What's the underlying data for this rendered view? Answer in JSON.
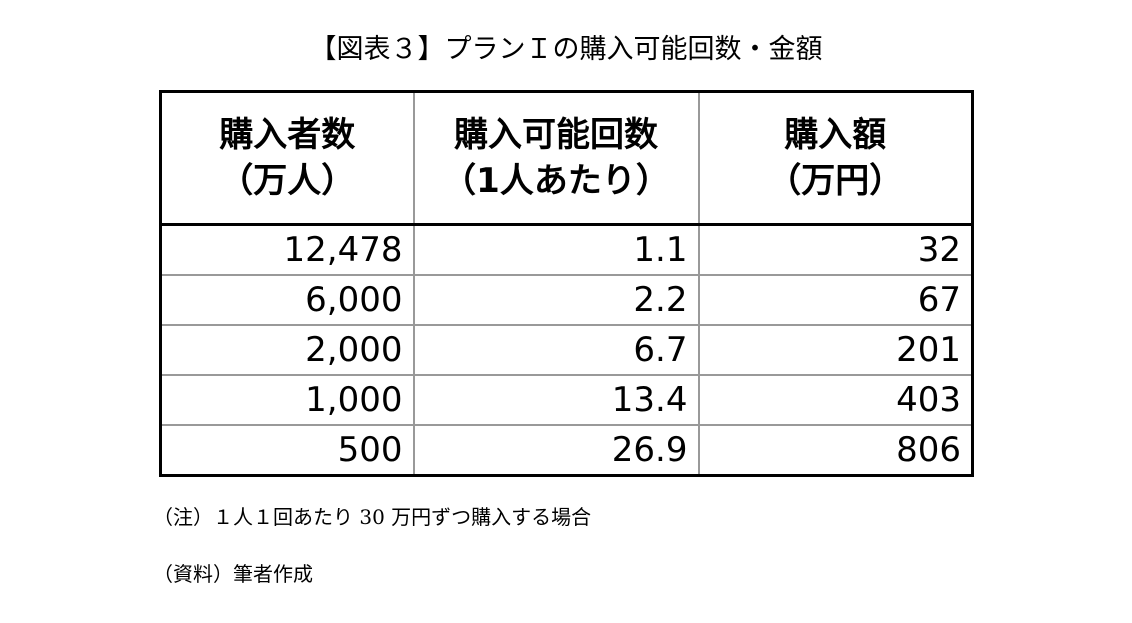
{
  "title": "【図表３】プランＩの購入可能回数・金額",
  "table": {
    "headers": [
      {
        "line1": "購入者数",
        "line2": "（万人）"
      },
      {
        "line1": "購入可能回数",
        "line2": "（1人あたり）"
      },
      {
        "line1": "購入額",
        "line2": "（万円）"
      }
    ],
    "rows": [
      [
        "12,478",
        "1.1",
        "32"
      ],
      [
        "6,000",
        "2.2",
        "67"
      ],
      [
        "2,000",
        "6.7",
        "201"
      ],
      [
        "1,000",
        "13.4",
        "403"
      ],
      [
        "500",
        "26.9",
        "806"
      ]
    ]
  },
  "notes": {
    "note": "（注）１人１回あたり 30 万円ずつ購入する場合",
    "source": "（資料）筆者作成"
  }
}
